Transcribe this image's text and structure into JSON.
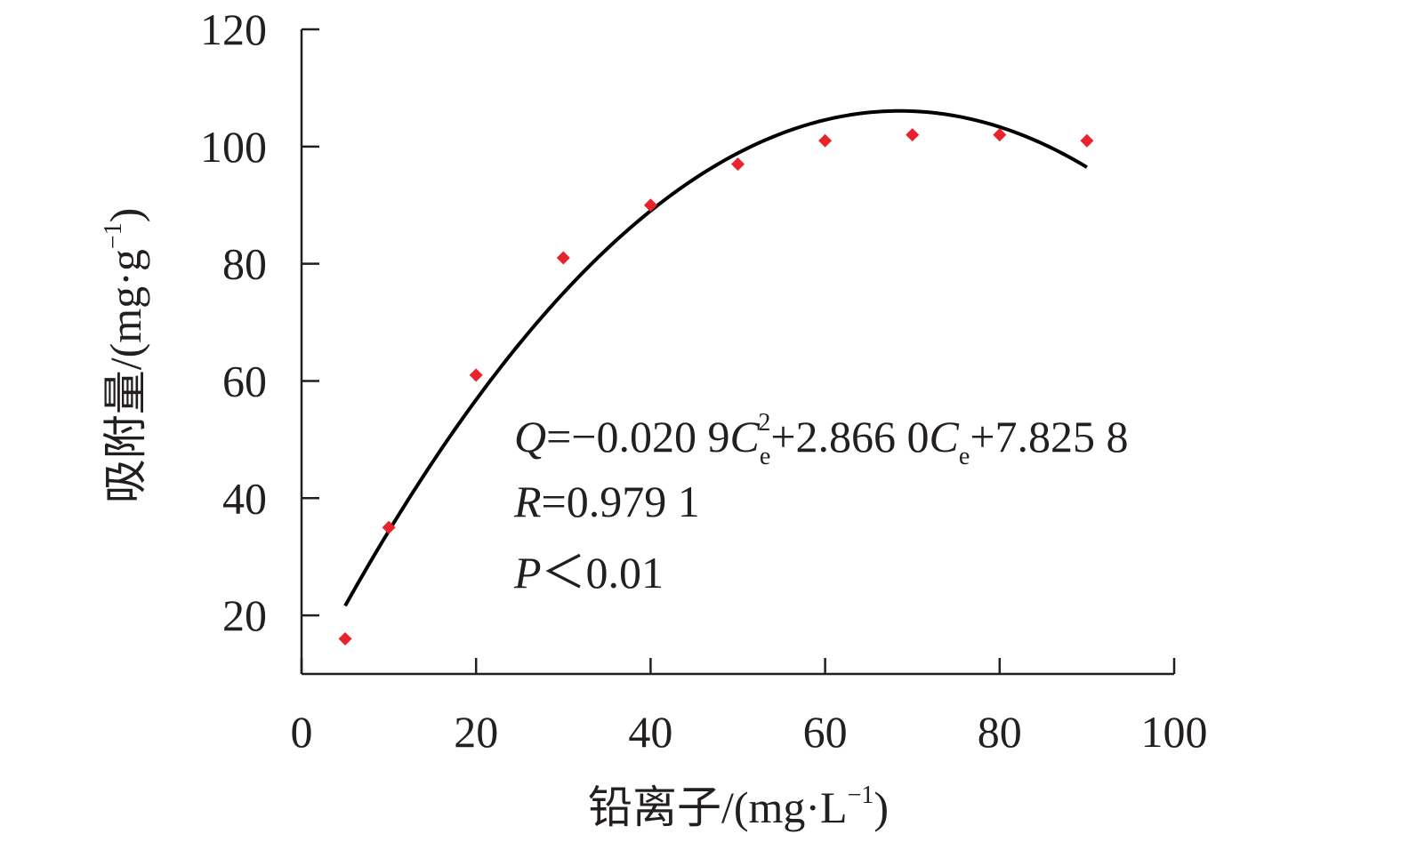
{
  "chart_data": {
    "type": "scatter",
    "xlabel": {
      "main": "铅离子/(mg·L",
      "sup": "−1",
      "close": ")"
    },
    "ylabel": {
      "main": "吸附量/(mg·g",
      "sup": "−1",
      "close": ")"
    },
    "xlim": [
      0,
      100
    ],
    "ylim": [
      10,
      120
    ],
    "x_ticks": [
      0,
      20,
      40,
      60,
      80,
      100
    ],
    "y_ticks": [
      20,
      40,
      60,
      80,
      100,
      120
    ],
    "grid": false,
    "series": [
      {
        "kind": "points",
        "color": "#e8232c",
        "marker": "diamond",
        "x": [
          5,
          10,
          20,
          30,
          40,
          50,
          60,
          70,
          80,
          90
        ],
        "y": [
          16,
          35,
          61,
          81,
          90,
          97,
          101,
          102,
          102,
          101
        ]
      },
      {
        "kind": "fit-curve",
        "color": "#000000",
        "x_range": [
          5,
          90
        ],
        "coefficients": {
          "a": -0.0209,
          "b": 2.866,
          "c": 7.8258
        }
      }
    ],
    "annotations": {
      "eq": {
        "q": "Q",
        "eq1": "=−0.020 9",
        "c1": "C",
        "sub1": "e",
        "sup1": "2",
        "eq2": "+2.866 0",
        "c2": "C",
        "sub2": "e",
        "eq3": "+7.825 8"
      },
      "r": {
        "sym": "R",
        "val": "=0.979 1"
      },
      "p": {
        "sym": "P",
        "val": "＜0.01"
      }
    }
  }
}
